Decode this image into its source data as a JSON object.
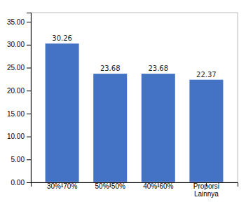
{
  "chart_data": {
    "type": "bar",
    "categories": [
      "30%-70%",
      "50%-50%",
      "40%-60%",
      "Proporsi\nLainnya"
    ],
    "values": [
      30.26,
      23.68,
      23.68,
      22.37
    ],
    "color": "#4472C4",
    "ylim": [
      0,
      37
    ],
    "yticks": [
      {
        "value": 0,
        "label": "0.00"
      },
      {
        "value": 5,
        "label": "5.00"
      },
      {
        "value": 10,
        "label": "10.00"
      },
      {
        "value": 15,
        "label": "15.00"
      },
      {
        "value": 20,
        "label": "20.00"
      },
      {
        "value": 25,
        "label": "25.00"
      },
      {
        "value": 30,
        "label": "30.00"
      },
      {
        "value": 35,
        "label": "35.00"
      }
    ],
    "grid": false,
    "data_labels": true
  }
}
